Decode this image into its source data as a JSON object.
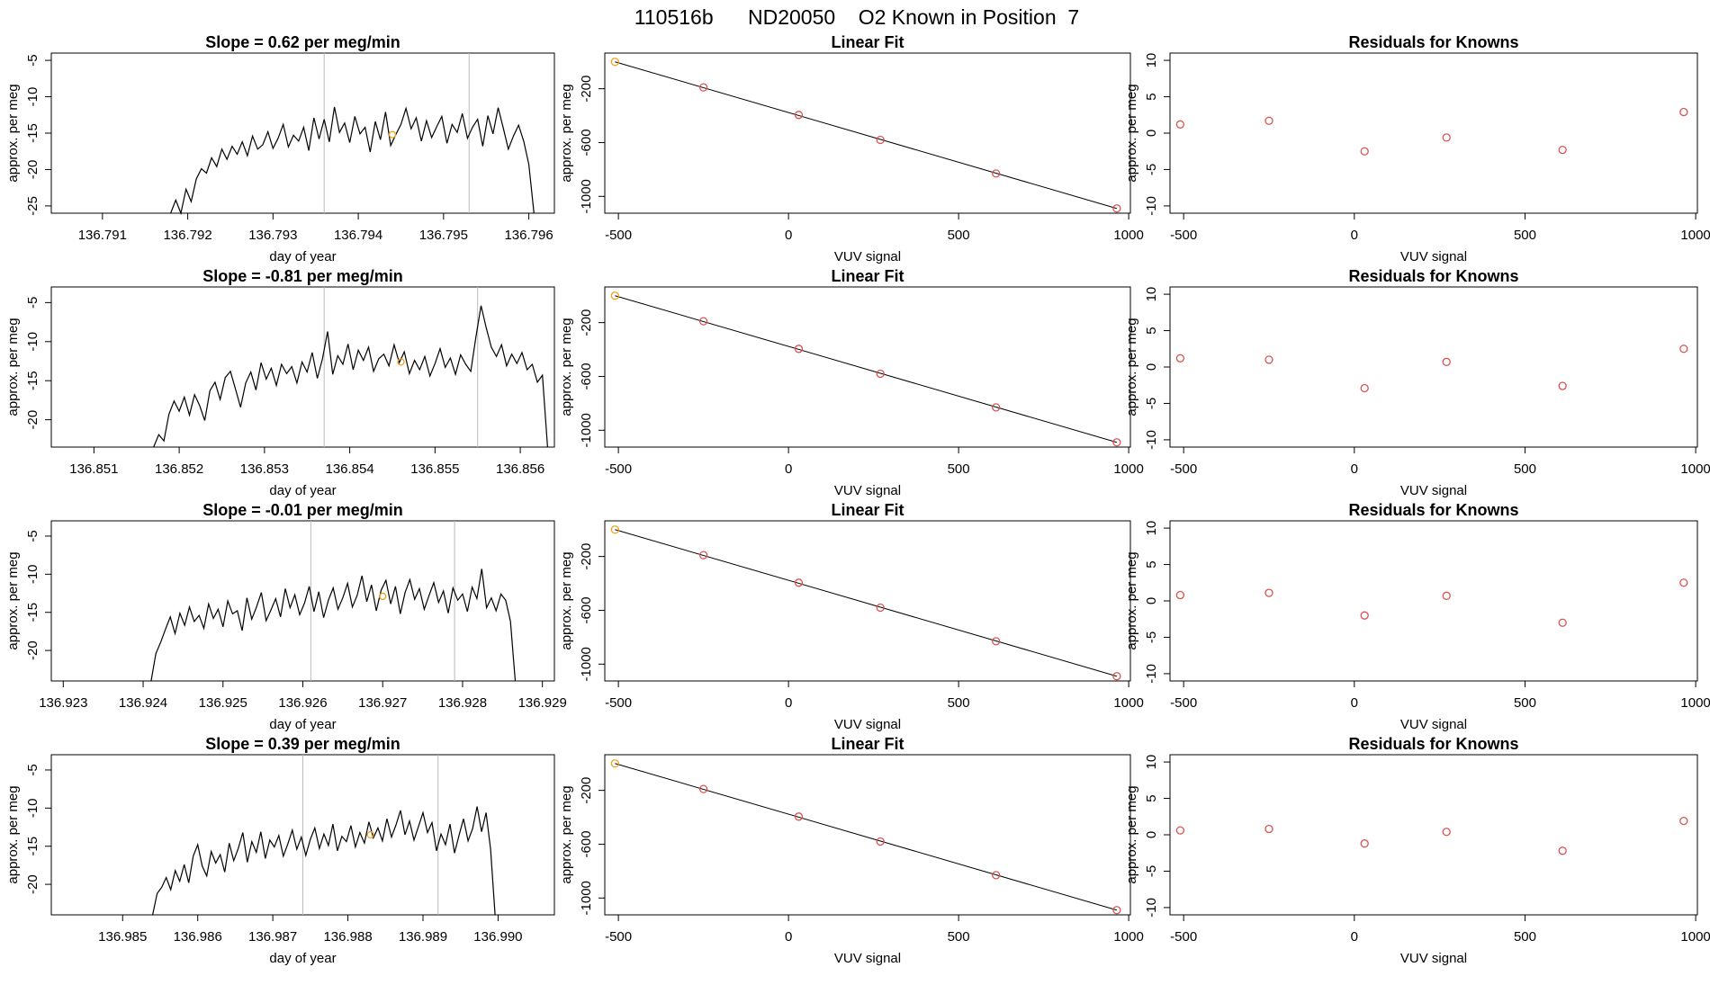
{
  "page_title": "110516b      ND20050    O2 Known in Position  7",
  "chart_data": [
    {
      "type": "line",
      "title": "Slope =  0.62  per meg/min",
      "xlabel": "day of year",
      "ylabel": "approx. per meg",
      "xlim": [
        136.7904,
        136.7963
      ],
      "ylim": [
        -26,
        -4
      ],
      "xticks": [
        "136.791",
        "136.792",
        "136.793",
        "136.794",
        "136.795",
        "136.796"
      ],
      "yticks": [
        "-5",
        "-10",
        "-15",
        "-20",
        "-25"
      ],
      "vlines": [
        136.7936,
        136.7953
      ],
      "highlight_point": {
        "x": 136.7944,
        "y": -15.2
      },
      "x": [
        136.7918,
        136.79186,
        136.79192,
        136.79198,
        136.79204,
        136.7921,
        136.79216,
        136.79222,
        136.79228,
        136.79234,
        136.7924,
        136.79246,
        136.79252,
        136.79258,
        136.79264,
        136.7927,
        136.79276,
        136.79282,
        136.79288,
        136.79294,
        136.793,
        136.79306,
        136.79312,
        136.79318,
        136.79324,
        136.7933,
        136.79336,
        136.79342,
        136.79348,
        136.79354,
        136.7936,
        136.79366,
        136.79372,
        136.79378,
        136.79384,
        136.7939,
        136.79396,
        136.79402,
        136.79408,
        136.79414,
        136.7942,
        136.79426,
        136.79432,
        136.79438,
        136.79444,
        136.7945,
        136.79456,
        136.79462,
        136.79468,
        136.79474,
        136.7948,
        136.79486,
        136.79492,
        136.79498,
        136.79504,
        136.7951,
        136.79516,
        136.79522,
        136.79528,
        136.79534,
        136.7954,
        136.79546,
        136.79552,
        136.79558,
        136.79564,
        136.7957,
        136.79576,
        136.79582,
        136.79588,
        136.79594,
        136.796,
        136.79606
      ],
      "y": [
        -26,
        -24.2,
        -26,
        -22.7,
        -24.4,
        -21.3,
        -19.9,
        -20.5,
        -18.4,
        -19.6,
        -17.2,
        -18.6,
        -16.8,
        -17.9,
        -16.2,
        -18.1,
        -15.4,
        -17.2,
        -16.6,
        -14.8,
        -17.1,
        -15.7,
        -13.8,
        -16.9,
        -15.3,
        -16.1,
        -14.2,
        -17.4,
        -12.9,
        -15.8,
        -13.1,
        -16.2,
        -11.4,
        -14.9,
        -13.6,
        -16.3,
        -12.7,
        -15.1,
        -14.2,
        -17.6,
        -13.4,
        -15.9,
        -12.1,
        -16.7,
        -15.2,
        -13.8,
        -11.6,
        -14.4,
        -12.9,
        -16.1,
        -13.3,
        -15.6,
        -14.1,
        -12.7,
        -16.4,
        -13.8,
        -14.9,
        -12.3,
        -15.7,
        -14.2,
        -13.1,
        -16.8,
        -12.6,
        -15.1,
        -11.5,
        -14.3,
        -17.2,
        -15.4,
        -13.9,
        -16.1,
        -19.3,
        -26
      ]
    },
    {
      "type": "scatter",
      "title": "Linear Fit",
      "xlabel": "VUV signal",
      "ylabel": "approx. per meg",
      "xlim": [
        -540,
        1005
      ],
      "ylim": [
        -1125,
        65
      ],
      "xticks": [
        -500,
        0,
        500,
        1000
      ],
      "yticks": [
        -200,
        -600,
        -1000
      ],
      "fit_line": {
        "x": [
          -510,
          965
        ],
        "y": [
          0,
          -1090
        ]
      },
      "points": {
        "x": [
          -510,
          -250,
          30,
          270,
          610,
          965
        ],
        "y": [
          0,
          -190,
          -395,
          -580,
          -830,
          -1090
        ]
      },
      "highlight_index": 0
    },
    {
      "type": "scatter",
      "title": "Residuals for Knowns",
      "xlabel": "VUV signal",
      "ylabel": "approx. per meg",
      "xlim": [
        -540,
        1005
      ],
      "ylim": [
        -11,
        11
      ],
      "xticks": [
        -500,
        0,
        500,
        1000
      ],
      "yticks": [
        10,
        5,
        0,
        -5,
        -10
      ],
      "points": {
        "x": [
          -510,
          -250,
          30,
          270,
          610,
          965
        ],
        "y": [
          1.2,
          1.7,
          -2.5,
          -0.6,
          -2.3,
          2.9
        ]
      }
    },
    {
      "type": "line",
      "title": "Slope =  -0.81  per meg/min",
      "xlabel": "day of year",
      "ylabel": "approx. per meg",
      "xlim": [
        136.8505,
        136.8564
      ],
      "ylim": [
        -23.5,
        -3
      ],
      "xticks": [
        "136.851",
        "136.852",
        "136.853",
        "136.854",
        "136.855",
        "136.856"
      ],
      "yticks": [
        "-5",
        "-10",
        "-15",
        "-20"
      ],
      "vlines": [
        136.8537,
        136.8555
      ],
      "highlight_point": {
        "x": 136.8546,
        "y": -12.6
      },
      "x": [
        136.8517,
        136.85176,
        136.85182,
        136.85188,
        136.85194,
        136.852,
        136.85206,
        136.85212,
        136.85218,
        136.85224,
        136.8523,
        136.85236,
        136.85242,
        136.85248,
        136.85254,
        136.8526,
        136.85266,
        136.85272,
        136.85278,
        136.85284,
        136.8529,
        136.85296,
        136.85302,
        136.85308,
        136.85314,
        136.8532,
        136.85326,
        136.85332,
        136.85338,
        136.85344,
        136.8535,
        136.85356,
        136.85362,
        136.85368,
        136.85374,
        136.8538,
        136.85386,
        136.85392,
        136.85398,
        136.85404,
        136.8541,
        136.85416,
        136.85422,
        136.85428,
        136.85434,
        136.8544,
        136.85446,
        136.85452,
        136.85458,
        136.85464,
        136.8547,
        136.85476,
        136.85482,
        136.85488,
        136.85494,
        136.855,
        136.85506,
        136.85512,
        136.85518,
        136.85524,
        136.8553,
        136.85536,
        136.85542,
        136.85548,
        136.85554,
        136.8556,
        136.85566,
        136.85572,
        136.85578,
        136.85584,
        136.8559,
        136.85596,
        136.85602,
        136.85608,
        136.85614,
        136.8562,
        136.85626,
        136.85632
      ],
      "y": [
        -23.5,
        -21.9,
        -22.7,
        -19.3,
        -17.6,
        -18.9,
        -17.1,
        -19.4,
        -16.8,
        -18.2,
        -20.1,
        -16.3,
        -15.2,
        -17.4,
        -14.6,
        -13.8,
        -16.1,
        -18.4,
        -15.3,
        -13.9,
        -16.2,
        -12.7,
        -14.8,
        -13.4,
        -15.6,
        -12.9,
        -14.1,
        -13.2,
        -15.3,
        -12.6,
        -13.9,
        -11.4,
        -14.7,
        -12.2,
        -8.7,
        -14.2,
        -11.8,
        -12.9,
        -10.3,
        -13.6,
        -11.1,
        -12.4,
        -10.7,
        -13.8,
        -12.2,
        -11.6,
        -13.1,
        -10.4,
        -12.7,
        -11.3,
        -14.1,
        -12.4,
        -13.6,
        -11.9,
        -14.4,
        -12.8,
        -10.9,
        -13.3,
        -12.1,
        -14.2,
        -11.7,
        -12.9,
        -13.8,
        -9.4,
        -5.4,
        -8.2,
        -10.7,
        -11.9,
        -10.4,
        -13.1,
        -11.6,
        -12.8,
        -11.4,
        -13.6,
        -12.9,
        -15.2,
        -14.3,
        -23.5
      ]
    },
    {
      "type": "scatter",
      "title": "Linear Fit",
      "xlabel": "VUV signal",
      "ylabel": "approx. per meg",
      "xlim": [
        -540,
        1005
      ],
      "ylim": [
        -1125,
        65
      ],
      "xticks": [
        -500,
        0,
        500,
        1000
      ],
      "yticks": [
        -200,
        -600,
        -1000
      ],
      "fit_line": {
        "x": [
          -510,
          965
        ],
        "y": [
          0,
          -1090
        ]
      },
      "points": {
        "x": [
          -510,
          -250,
          30,
          270,
          610,
          965
        ],
        "y": [
          0,
          -190,
          -395,
          -580,
          -830,
          -1090
        ]
      },
      "highlight_index": 0
    },
    {
      "type": "scatter",
      "title": "Residuals for Knowns",
      "xlabel": "VUV signal",
      "ylabel": "approx. per meg",
      "xlim": [
        -540,
        1005
      ],
      "ylim": [
        -11,
        11
      ],
      "xticks": [
        -500,
        0,
        500,
        1000
      ],
      "yticks": [
        10,
        5,
        0,
        -5,
        -10
      ],
      "points": {
        "x": [
          -510,
          -250,
          30,
          270,
          610,
          965
        ],
        "y": [
          1.2,
          1.0,
          -2.9,
          0.7,
          -2.6,
          2.5
        ]
      }
    },
    {
      "type": "line",
      "title": "Slope =  -0.01  per meg/min",
      "xlabel": "day of year",
      "ylabel": "approx. per meg",
      "xlim": [
        136.92285,
        136.92915
      ],
      "ylim": [
        -24,
        -3
      ],
      "xticks": [
        "136.923",
        "136.924",
        "136.925",
        "136.926",
        "136.927",
        "136.928",
        "136.929"
      ],
      "yticks": [
        "-5",
        "-10",
        "-15",
        "-20"
      ],
      "vlines": [
        136.9261,
        136.9279
      ],
      "highlight_point": {
        "x": 136.927,
        "y": -12.9
      },
      "x": [
        136.9241,
        136.92416,
        136.92422,
        136.92428,
        136.92434,
        136.9244,
        136.92446,
        136.92452,
        136.92458,
        136.92464,
        136.9247,
        136.92476,
        136.92482,
        136.92488,
        136.92494,
        136.925,
        136.92506,
        136.92512,
        136.92518,
        136.92524,
        136.9253,
        136.92536,
        136.92542,
        136.92548,
        136.92554,
        136.9256,
        136.92566,
        136.92572,
        136.92578,
        136.92584,
        136.9259,
        136.92596,
        136.92602,
        136.92608,
        136.92614,
        136.9262,
        136.92626,
        136.92632,
        136.92638,
        136.92644,
        136.9265,
        136.92656,
        136.92662,
        136.92668,
        136.92674,
        136.9268,
        136.92686,
        136.92692,
        136.92698,
        136.92704,
        136.9271,
        136.92716,
        136.92722,
        136.92728,
        136.92734,
        136.9274,
        136.92746,
        136.92752,
        136.92758,
        136.92764,
        136.9277,
        136.92776,
        136.92782,
        136.92788,
        136.92794,
        136.928,
        136.92806,
        136.92812,
        136.92818,
        136.92824,
        136.9283,
        136.92836,
        136.92842,
        136.92848,
        136.92854,
        136.9286,
        136.92866
      ],
      "y": [
        -24,
        -20.4,
        -18.9,
        -17.2,
        -15.6,
        -17.8,
        -15.1,
        -16.7,
        -14.3,
        -16.2,
        -15.4,
        -17.1,
        -13.9,
        -15.8,
        -14.6,
        -16.9,
        -13.5,
        -15.2,
        -14.8,
        -17.4,
        -13.1,
        -15.9,
        -14.3,
        -12.4,
        -16.1,
        -14.7,
        -13.2,
        -15.6,
        -11.9,
        -14.4,
        -12.7,
        -15.3,
        -13.8,
        -11.6,
        -14.9,
        -12.3,
        -15.7,
        -13.4,
        -11.8,
        -14.6,
        -13.1,
        -11.2,
        -14.3,
        -12.8,
        -10.2,
        -13.6,
        -11.4,
        -14.8,
        -12.1,
        -10.8,
        -13.9,
        -11.6,
        -15.2,
        -12.4,
        -10.7,
        -13.3,
        -11.9,
        -14.6,
        -12.8,
        -11.1,
        -13.7,
        -12.2,
        -15.1,
        -11.8,
        -13.4,
        -12.6,
        -14.9,
        -11.7,
        -13.2,
        -9.3,
        -14.4,
        -13.1,
        -14.8,
        -12.6,
        -13.4,
        -16.2,
        -24
      ]
    },
    {
      "type": "scatter",
      "title": "Linear Fit",
      "xlabel": "VUV signal",
      "ylabel": "approx. per meg",
      "xlim": [
        -540,
        1005
      ],
      "ylim": [
        -1125,
        65
      ],
      "xticks": [
        -500,
        0,
        500,
        1000
      ],
      "yticks": [
        -200,
        -600,
        -1000
      ],
      "fit_line": {
        "x": [
          -510,
          965
        ],
        "y": [
          0,
          -1090
        ]
      },
      "points": {
        "x": [
          -510,
          -250,
          30,
          270,
          610,
          965
        ],
        "y": [
          0,
          -190,
          -395,
          -580,
          -830,
          -1090
        ]
      },
      "highlight_index": 0
    },
    {
      "type": "scatter",
      "title": "Residuals for Knowns",
      "xlabel": "VUV signal",
      "ylabel": "approx. per meg",
      "xlim": [
        -540,
        1005
      ],
      "ylim": [
        -11,
        11
      ],
      "xticks": [
        -500,
        0,
        500,
        1000
      ],
      "yticks": [
        10,
        5,
        0,
        -5,
        -10
      ],
      "points": {
        "x": [
          -510,
          -250,
          30,
          270,
          610,
          965
        ],
        "y": [
          0.8,
          1.1,
          -2.0,
          0.7,
          -3.0,
          2.5
        ]
      }
    },
    {
      "type": "line",
      "title": "Slope =  0.39  per meg/min",
      "xlabel": "day of year",
      "ylabel": "approx. per meg",
      "xlim": [
        136.98405,
        136.99075
      ],
      "ylim": [
        -24,
        -3
      ],
      "xticks": [
        "136.985",
        "136.986",
        "136.987",
        "136.988",
        "136.989",
        "136.990"
      ],
      "yticks": [
        "-5",
        "-10",
        "-15",
        "-20"
      ],
      "vlines": [
        136.9874,
        136.9892
      ],
      "highlight_point": {
        "x": 136.9883,
        "y": -13.5
      },
      "x": [
        136.9854,
        136.98546,
        136.98552,
        136.98558,
        136.98564,
        136.9857,
        136.98576,
        136.98582,
        136.98588,
        136.98594,
        136.986,
        136.98606,
        136.98612,
        136.98618,
        136.98624,
        136.9863,
        136.98636,
        136.98642,
        136.98648,
        136.98654,
        136.9866,
        136.98666,
        136.98672,
        136.98678,
        136.98684,
        136.9869,
        136.98696,
        136.98702,
        136.98708,
        136.98714,
        136.9872,
        136.98726,
        136.98732,
        136.98738,
        136.98744,
        136.9875,
        136.98756,
        136.98762,
        136.98768,
        136.98774,
        136.9878,
        136.98786,
        136.98792,
        136.98798,
        136.98804,
        136.9881,
        136.98816,
        136.98822,
        136.98828,
        136.98834,
        136.9884,
        136.98846,
        136.98852,
        136.98858,
        136.98864,
        136.9887,
        136.98876,
        136.98882,
        136.98888,
        136.98894,
        136.989,
        136.98906,
        136.98912,
        136.98918,
        136.98924,
        136.9893,
        136.98936,
        136.98942,
        136.98948,
        136.98954,
        136.9896,
        136.98966,
        136.98972,
        136.98978,
        136.98984,
        136.9899,
        136.98996
      ],
      "y": [
        -24,
        -21.2,
        -20.4,
        -19.1,
        -20.7,
        -18.2,
        -19.6,
        -17.4,
        -19.8,
        -16.3,
        -14.8,
        -17.6,
        -18.9,
        -15.7,
        -17.2,
        -16.1,
        -18.4,
        -14.6,
        -16.9,
        -15.3,
        -13.2,
        -17.1,
        -14.4,
        -15.8,
        -13.1,
        -16.6,
        -14.2,
        -15.1,
        -13.6,
        -16.3,
        -14.7,
        -12.9,
        -15.4,
        -13.8,
        -16.2,
        -14.1,
        -12.6,
        -15.3,
        -13.4,
        -14.9,
        -12.1,
        -15.6,
        -13.7,
        -14.4,
        -12.3,
        -15.1,
        -13.2,
        -14.6,
        -11.8,
        -13.9,
        -12.6,
        -14.3,
        -11.4,
        -13.8,
        -12.2,
        -10.3,
        -13.5,
        -11.7,
        -14.2,
        -12.4,
        -10.6,
        -13.2,
        -11.9,
        -15.6,
        -13.4,
        -14.8,
        -12.1,
        -15.9,
        -13.6,
        -11.4,
        -14.3,
        -12.7,
        -9.8,
        -13.1,
        -10.6,
        -15.4,
        -24
      ]
    },
    {
      "type": "scatter",
      "title": "Linear Fit",
      "xlabel": "VUV signal",
      "ylabel": "approx. per meg",
      "xlim": [
        -540,
        1005
      ],
      "ylim": [
        -1125,
        65
      ],
      "xticks": [
        -500,
        0,
        500,
        1000
      ],
      "yticks": [
        -200,
        -600,
        -1000
      ],
      "fit_line": {
        "x": [
          -510,
          965
        ],
        "y": [
          0,
          -1090
        ]
      },
      "points": {
        "x": [
          -510,
          -250,
          30,
          270,
          610,
          965
        ],
        "y": [
          0,
          -190,
          -395,
          -580,
          -830,
          -1090
        ]
      },
      "highlight_index": 0
    },
    {
      "type": "scatter",
      "title": "Residuals for Knowns",
      "xlabel": "VUV signal",
      "ylabel": "approx. per meg",
      "xlim": [
        -540,
        1005
      ],
      "ylim": [
        -11,
        11
      ],
      "xticks": [
        -500,
        0,
        500,
        1000
      ],
      "yticks": [
        10,
        5,
        0,
        -5,
        -10
      ],
      "points": {
        "x": [
          -510,
          -250,
          30,
          270,
          610,
          965
        ],
        "y": [
          0.6,
          0.8,
          -1.2,
          0.4,
          -2.2,
          1.9
        ]
      }
    }
  ]
}
